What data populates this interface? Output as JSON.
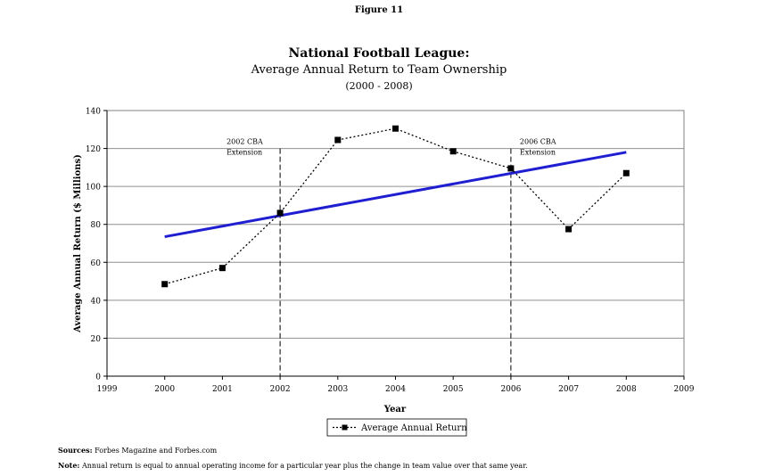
{
  "figure_label": "Figure 11",
  "chart_data": {
    "type": "line",
    "title": "National Football League:",
    "subtitle": "Average Annual Return to Team Ownership",
    "subtitle2": "(2000 - 2008)",
    "xlabel": "Year",
    "ylabel": "Average Annual Return ($ Millions)",
    "xlim": [
      1999,
      2009
    ],
    "ylim": [
      0,
      140
    ],
    "x_ticks": [
      1999,
      2000,
      2001,
      2002,
      2003,
      2004,
      2005,
      2006,
      2007,
      2008,
      2009
    ],
    "y_ticks": [
      0,
      20,
      40,
      60,
      80,
      100,
      120,
      140
    ],
    "grid": "horizontal",
    "series": [
      {
        "name": "Average Annual Return",
        "style": "dotted-square",
        "color": "#000000",
        "x": [
          2000,
          2001,
          2002,
          2003,
          2004,
          2005,
          2006,
          2007,
          2008
        ],
        "y": [
          48.5,
          57,
          86,
          124.5,
          130.5,
          118.5,
          109.5,
          77.5,
          107
        ]
      }
    ],
    "trend_line": {
      "color": "#1f1fd1",
      "x": [
        2000,
        2008
      ],
      "y": [
        73.5,
        118
      ]
    },
    "reference_lines": [
      {
        "x": 2002,
        "label_line1": "2002 CBA",
        "label_line2": "Extension"
      },
      {
        "x": 2006,
        "label_line1": "2006 CBA",
        "label_line2": "Extension"
      }
    ],
    "legend_position": "bottom-center"
  },
  "sources_label": "Sources:",
  "sources_text": "Forbes Magazine and Forbes.com",
  "note_label": "Note:",
  "note_text": "Annual return is equal to annual operating income for a particular year plus the change in team value over that same year."
}
